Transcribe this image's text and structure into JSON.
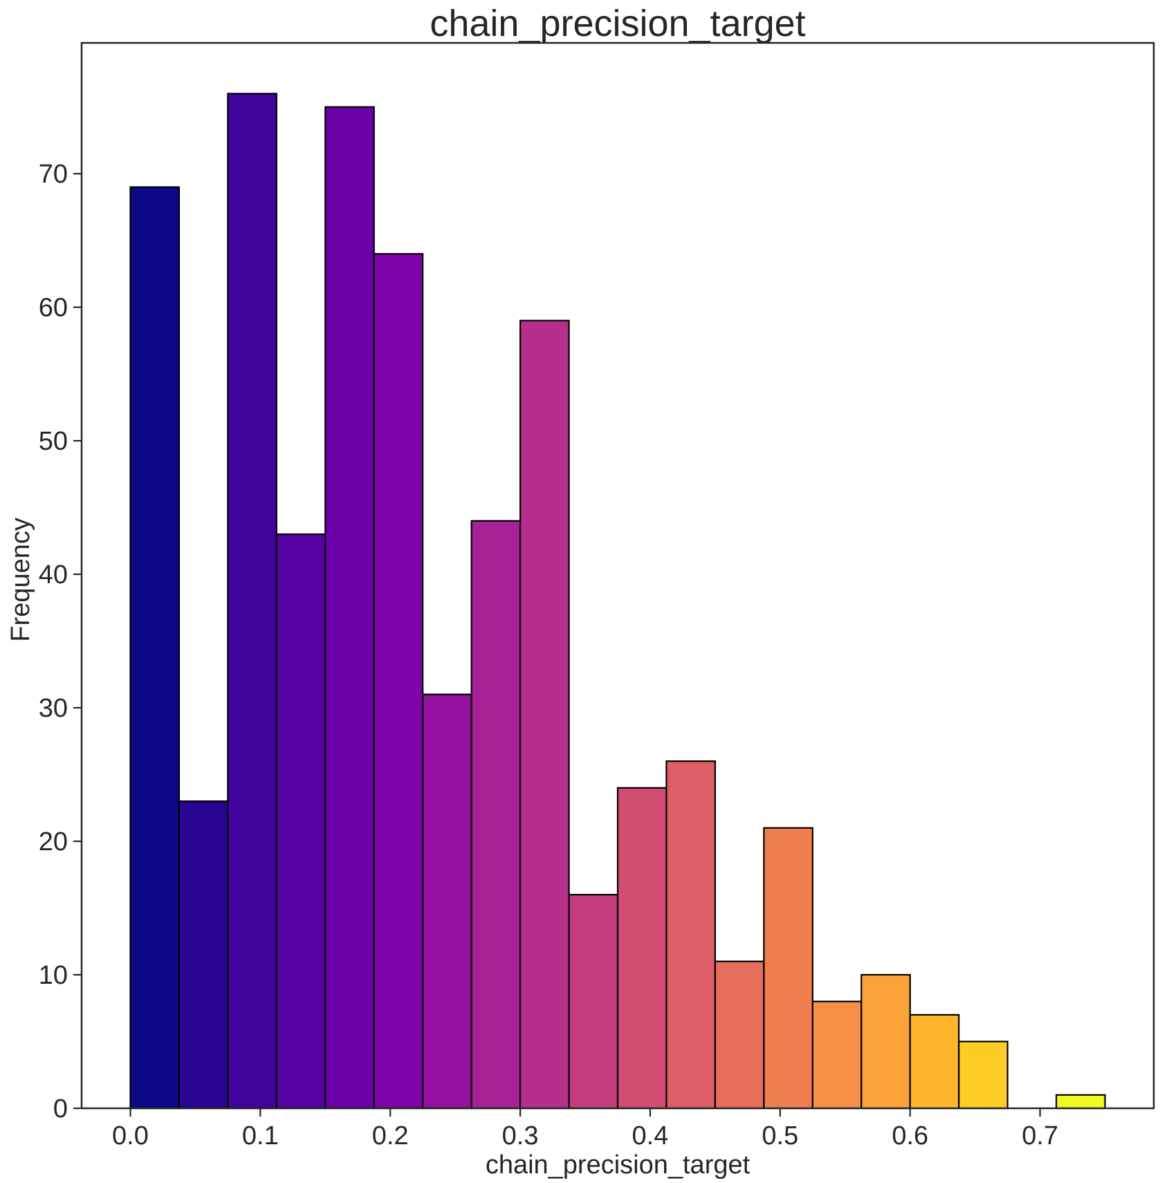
{
  "chart_data": {
    "type": "bar",
    "title": "chain_precision_target",
    "xlabel": "chain_precision_target",
    "ylabel": "Frequency",
    "xlim": [
      -0.0375,
      0.7875
    ],
    "ylim": [
      0,
      79.8
    ],
    "xticks": [
      "0.0",
      "0.1",
      "0.2",
      "0.3",
      "0.4",
      "0.5",
      "0.6",
      "0.7"
    ],
    "yticks": [
      "0",
      "10",
      "20",
      "30",
      "40",
      "50",
      "60",
      "70"
    ],
    "grid": false,
    "bin_width": 0.0375,
    "bins": [
      {
        "x0": 0.0,
        "x1": 0.0375,
        "count": 69,
        "color": "#0d0887"
      },
      {
        "x0": 0.0375,
        "x1": 0.075,
        "count": 23,
        "color": "#2a0593"
      },
      {
        "x0": 0.075,
        "x1": 0.1125,
        "count": 76,
        "color": "#41049d"
      },
      {
        "x0": 0.1125,
        "x1": 0.15,
        "count": 43,
        "color": "#5601a4"
      },
      {
        "x0": 0.15,
        "x1": 0.1875,
        "count": 75,
        "color": "#6a00a8"
      },
      {
        "x0": 0.1875,
        "x1": 0.225,
        "count": 64,
        "color": "#7e03a8"
      },
      {
        "x0": 0.225,
        "x1": 0.2625,
        "count": 31,
        "color": "#9511a1"
      },
      {
        "x0": 0.2625,
        "x1": 0.3,
        "count": 44,
        "color": "#a72197"
      },
      {
        "x0": 0.3,
        "x1": 0.3375,
        "count": 59,
        "color": "#b52f8c"
      },
      {
        "x0": 0.3375,
        "x1": 0.375,
        "count": 16,
        "color": "#c43e7f"
      },
      {
        "x0": 0.375,
        "x1": 0.4125,
        "count": 24,
        "color": "#d24d72"
      },
      {
        "x0": 0.4125,
        "x1": 0.45,
        "count": 26,
        "color": "#dd5e66"
      },
      {
        "x0": 0.45,
        "x1": 0.4875,
        "count": 11,
        "color": "#e76e5b"
      },
      {
        "x0": 0.4875,
        "x1": 0.525,
        "count": 21,
        "color": "#f07f4f"
      },
      {
        "x0": 0.525,
        "x1": 0.5625,
        "count": 8,
        "color": "#f79044"
      },
      {
        "x0": 0.5625,
        "x1": 0.6,
        "count": 10,
        "color": "#fba238"
      },
      {
        "x0": 0.6,
        "x1": 0.6375,
        "count": 7,
        "color": "#feb72d"
      },
      {
        "x0": 0.6375,
        "x1": 0.675,
        "count": 5,
        "color": "#fccd25"
      },
      {
        "x0": 0.675,
        "x1": 0.7125,
        "count": 0,
        "color": "#f7e225"
      },
      {
        "x0": 0.7125,
        "x1": 0.75,
        "count": 1,
        "color": "#f0f921"
      }
    ]
  }
}
